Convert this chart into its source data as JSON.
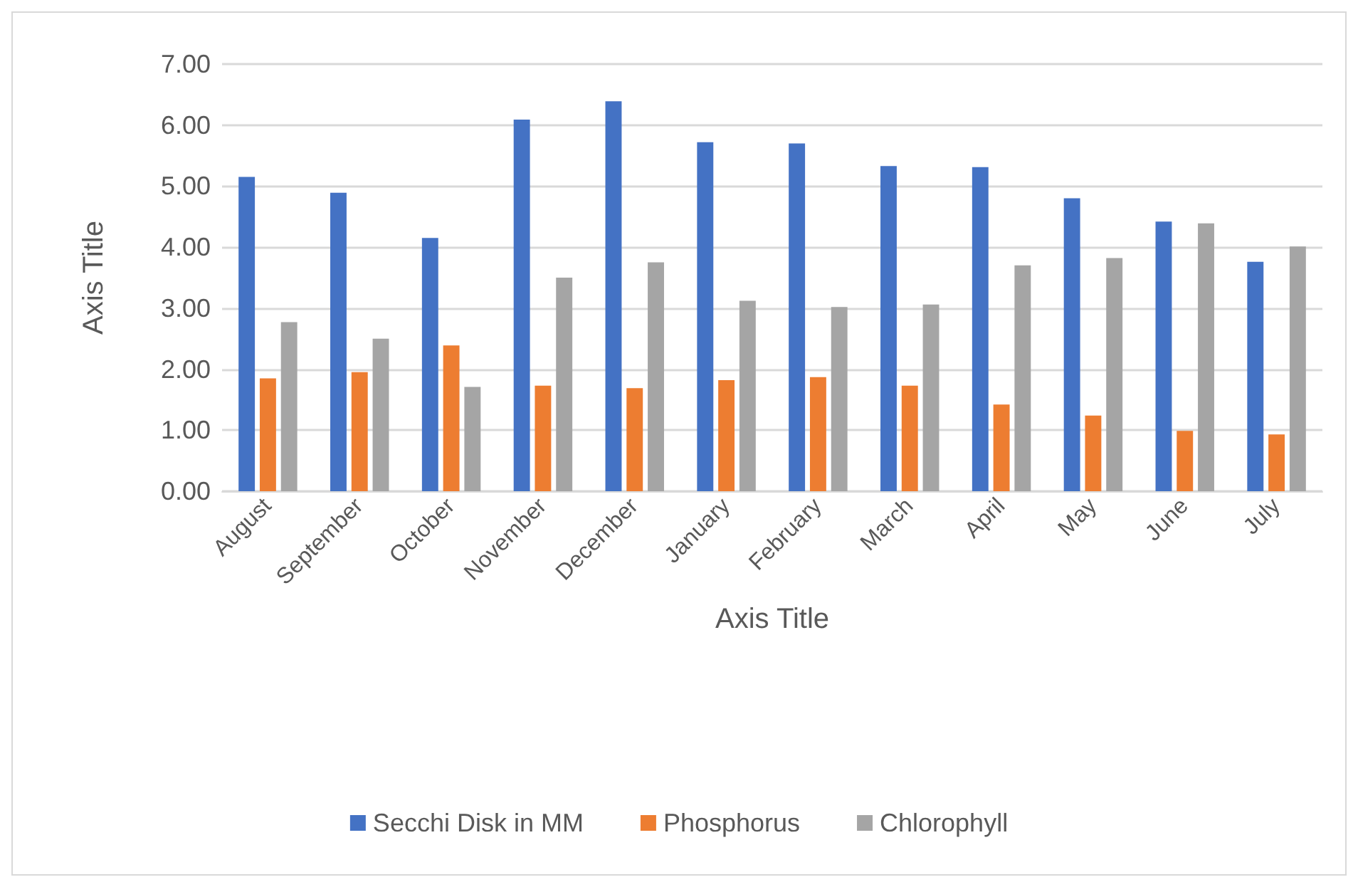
{
  "chart_data": {
    "type": "bar",
    "xlabel": "Axis Title",
    "ylabel": "Axis Title",
    "categories": [
      "August",
      "September",
      "October",
      "November",
      "December",
      "January",
      "February",
      "March",
      "April",
      "May",
      "June",
      "July"
    ],
    "series": [
      {
        "name": "Secchi Disk in MM",
        "color": "#4472c4",
        "values": [
          5.15,
          4.89,
          4.15,
          6.09,
          6.39,
          5.72,
          5.7,
          5.33,
          5.31,
          4.8,
          4.42,
          3.76
        ]
      },
      {
        "name": "Phosphorus",
        "color": "#ed7d31",
        "values": [
          1.85,
          1.95,
          2.39,
          1.73,
          1.69,
          1.82,
          1.87,
          1.73,
          1.42,
          1.24,
          0.99,
          0.93
        ]
      },
      {
        "name": "Chlorophyll",
        "color": "#a5a5a5",
        "values": [
          2.77,
          2.5,
          1.71,
          3.5,
          3.75,
          3.12,
          3.02,
          3.06,
          3.7,
          3.82,
          4.39,
          4.01
        ]
      }
    ],
    "ylim": [
      0,
      7
    ],
    "yticks": [
      {
        "value": 0,
        "label": "0.00"
      },
      {
        "value": 1,
        "label": "1.00"
      },
      {
        "value": 2,
        "label": "2.00"
      },
      {
        "value": 3,
        "label": "3.00"
      },
      {
        "value": 4,
        "label": "4.00"
      },
      {
        "value": 5,
        "label": "5.00"
      },
      {
        "value": 6,
        "label": "6.00"
      },
      {
        "value": 7,
        "label": "7.00"
      }
    ],
    "grid": "y",
    "legend": "bottom"
  }
}
